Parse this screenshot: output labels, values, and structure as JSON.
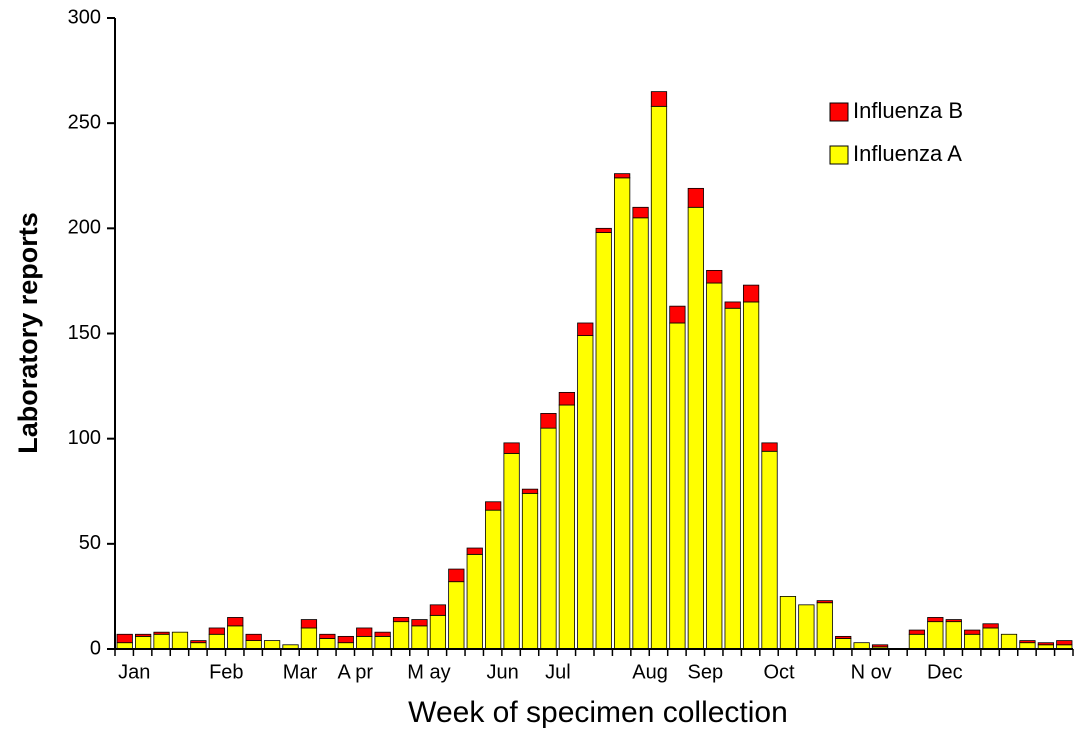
{
  "chart_data": {
    "type": "stacked_bar",
    "xlabel": "Week of specimen collection",
    "ylabel": "Laboratory reports",
    "categories": [
      "Jan",
      null,
      null,
      null,
      null,
      "Feb",
      null,
      null,
      null,
      "Mar",
      null,
      null,
      "A pr",
      null,
      null,
      null,
      "M ay",
      null,
      null,
      null,
      "Jun",
      null,
      null,
      "Jul",
      null,
      null,
      null,
      null,
      "Aug",
      null,
      null,
      "Sep",
      null,
      null,
      null,
      "Oct",
      null,
      null,
      null,
      null,
      "N ov",
      null,
      null,
      null,
      "Dec",
      null,
      null,
      null,
      null,
      null,
      null,
      null
    ],
    "series": [
      {
        "name": "Influenza A",
        "color": "#ffff00",
        "values": [
          3,
          6,
          7,
          8,
          3,
          7,
          11,
          4,
          4,
          2,
          10,
          5,
          3,
          6,
          6,
          13,
          11,
          16,
          32,
          45,
          66,
          93,
          74,
          105,
          116,
          149,
          198,
          224,
          205,
          258,
          155,
          210,
          174,
          162,
          165,
          94,
          25,
          21,
          22,
          5,
          3,
          1,
          0,
          7,
          13,
          13,
          7,
          10,
          7,
          3,
          2,
          2
        ]
      },
      {
        "name": "Influenza B",
        "color": "#ff0000",
        "values": [
          4,
          1,
          1,
          0,
          1,
          3,
          4,
          3,
          0,
          0,
          4,
          2,
          3,
          4,
          2,
          2,
          3,
          5,
          6,
          3,
          4,
          5,
          2,
          7,
          6,
          6,
          2,
          2,
          5,
          7,
          8,
          9,
          6,
          3,
          8,
          4,
          0,
          0,
          1,
          1,
          0,
          1,
          0,
          2,
          2,
          1,
          2,
          2,
          0,
          1,
          1,
          2
        ]
      }
    ],
    "ylim": [
      0,
      300
    ],
    "yticks": [
      0,
      50,
      100,
      150,
      200,
      250,
      300
    ],
    "legend": "upper right"
  }
}
